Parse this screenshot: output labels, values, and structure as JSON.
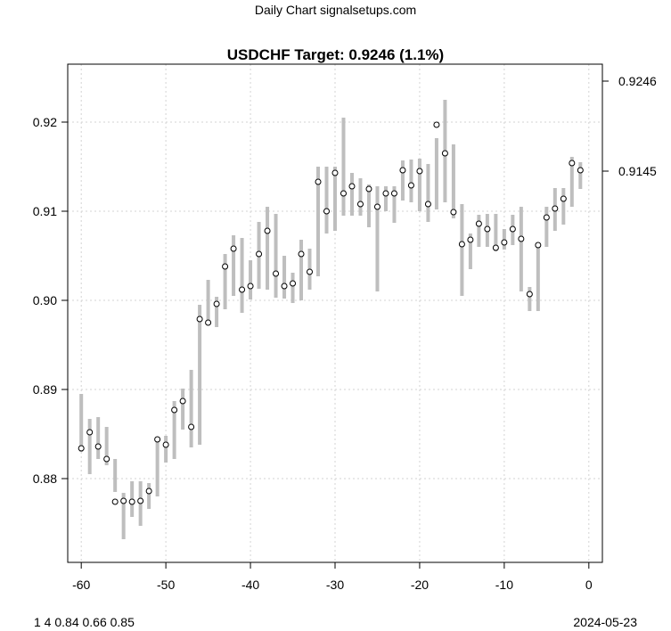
{
  "header": {
    "site_title": "Daily Chart signalsetups.com"
  },
  "footer": {
    "left_note": "1 4 0.84 0.66 0.85",
    "right_date": "2024-05-23"
  },
  "chart_data": {
    "type": "range-dot",
    "title": "USDCHF Target: 0.9246 (1.1%)",
    "xlabel": "",
    "ylabel": "",
    "xlim": [
      -61.6,
      1.6
    ],
    "ylim": [
      0.8706,
      0.9265
    ],
    "x_ticks": [
      -60,
      -50,
      -40,
      -30,
      -20,
      -10,
      0
    ],
    "x_tick_labels": [
      "-60",
      "-50",
      "-40",
      "-30",
      "-20",
      "-10",
      "0"
    ],
    "y_ticks": [
      0.88,
      0.89,
      0.9,
      0.91,
      0.92
    ],
    "y_tick_labels": [
      "0.88",
      "0.89",
      "0.90",
      "0.91",
      "0.92"
    ],
    "right_axis_ticks": [
      0.9246,
      0.9145
    ],
    "right_axis_labels": [
      "0.9246",
      "0.9145"
    ],
    "grid": true,
    "colors": {
      "range_bar": "#bebebe",
      "grid": "#d3d3d3",
      "point_fill": "#ffffff",
      "point_stroke": "#000000"
    },
    "series": [
      {
        "x": [
          -60,
          -59,
          -58,
          -57,
          -56,
          -55,
          -54,
          -53,
          -52,
          -51,
          -50,
          -49,
          -48,
          -47,
          -46,
          -45,
          -44,
          -43,
          -42,
          -41,
          -40,
          -39,
          -38,
          -37,
          -36,
          -35,
          -34,
          -33,
          -32,
          -31,
          -30,
          -29,
          -28,
          -27,
          -26,
          -25,
          -24,
          -23,
          -22,
          -21,
          -20,
          -19,
          -18,
          -17,
          -16,
          -15,
          -14,
          -13,
          -12,
          -11,
          -10,
          -9,
          -8,
          -7,
          -6,
          -5,
          -4,
          -3,
          -2,
          -1
        ],
        "high": [
          0.8895,
          0.8867,
          0.8869,
          0.8858,
          0.8822,
          0.8784,
          0.8797,
          0.8797,
          0.8795,
          0.8846,
          0.8848,
          0.8887,
          0.8901,
          0.8922,
          0.8995,
          0.9023,
          0.9004,
          0.9052,
          0.9073,
          0.907,
          0.9045,
          0.9088,
          0.9105,
          0.9097,
          0.905,
          0.9031,
          0.9068,
          0.9058,
          0.915,
          0.915,
          0.915,
          0.9205,
          0.9143,
          0.9137,
          0.913,
          0.9128,
          0.9128,
          0.9128,
          0.9157,
          0.9158,
          0.9159,
          0.9153,
          0.9182,
          0.9225,
          0.9175,
          0.9108,
          0.9075,
          0.9096,
          0.9097,
          0.9097,
          0.908,
          0.9096,
          0.9105,
          0.9015,
          0.9065,
          0.9105,
          0.9126,
          0.9126,
          0.9161,
          0.9155
        ],
        "low": [
          0.883,
          0.8805,
          0.8822,
          0.8815,
          0.8785,
          0.8732,
          0.8757,
          0.8747,
          0.8766,
          0.878,
          0.8818,
          0.8822,
          0.8855,
          0.8835,
          0.8838,
          0.8974,
          0.897,
          0.899,
          0.9005,
          0.8986,
          0.9001,
          0.9013,
          0.9012,
          0.9003,
          0.9002,
          0.8997,
          0.9,
          0.9012,
          0.9027,
          0.9075,
          0.9078,
          0.9095,
          0.9095,
          0.9095,
          0.9082,
          0.901,
          0.91,
          0.9087,
          0.9112,
          0.911,
          0.91,
          0.9088,
          0.9102,
          0.911,
          0.9092,
          0.9005,
          0.9035,
          0.906,
          0.906,
          0.9055,
          0.9057,
          0.9062,
          0.901,
          0.8988,
          0.8988,
          0.906,
          0.9078,
          0.9085,
          0.9105,
          0.9125
        ],
        "close": [
          0.8834,
          0.8852,
          0.8836,
          0.8822,
          0.8774,
          0.8775,
          0.8774,
          0.8775,
          0.8786,
          0.8844,
          0.8838,
          0.8877,
          0.8887,
          0.8858,
          0.8979,
          0.8975,
          0.8996,
          0.9038,
          0.9058,
          0.9012,
          0.9016,
          0.9052,
          0.9078,
          0.903,
          0.9016,
          0.9019,
          0.9052,
          0.9032,
          0.9133,
          0.91,
          0.9143,
          0.912,
          0.9128,
          0.9108,
          0.9125,
          0.9105,
          0.912,
          0.912,
          0.9146,
          0.9129,
          0.9145,
          0.9108,
          0.9197,
          0.9165,
          0.9099,
          0.9063,
          0.9068,
          0.9086,
          0.908,
          0.9059,
          0.9065,
          0.908,
          0.9069,
          0.9007,
          0.9062,
          0.9093,
          0.9103,
          0.9114,
          0.9154,
          0.9146
        ]
      }
    ]
  }
}
